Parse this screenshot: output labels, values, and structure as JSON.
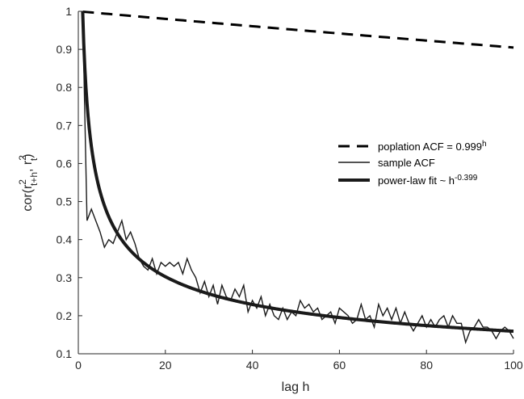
{
  "chart_data": {
    "type": "line",
    "xlabel": "lag h",
    "ylabel": {
      "base": "cor(r",
      "sup1": "2",
      "sub1": "t+h",
      "mid": ", r",
      "sup2": "2",
      "sub2": "t",
      "end": ")"
    },
    "xlim": [
      0,
      100
    ],
    "ylim": [
      0.1,
      1
    ],
    "xticks": [
      0,
      20,
      40,
      60,
      80,
      100
    ],
    "yticks": [
      0.1,
      0.2,
      0.3,
      0.4,
      0.5,
      0.6,
      0.7,
      0.8,
      0.9,
      1
    ],
    "ytick_labels": [
      "0.1",
      "0.2",
      "0.3",
      "0.4",
      "0.5",
      "0.6",
      "0.7",
      "0.8",
      "0.9",
      "1"
    ],
    "grid": false,
    "legend_position": "right",
    "series": [
      {
        "name": "poplation ACF = 0.999",
        "name_sup": "h",
        "style": "dashed",
        "color": "#000000",
        "base": 0.999,
        "x": [
          1,
          100
        ],
        "formula": "0.999^h"
      },
      {
        "name": "sample ACF",
        "style": "thin",
        "color": "#1a1a1a",
        "x": [
          1,
          2,
          3,
          4,
          5,
          6,
          7,
          8,
          9,
          10,
          11,
          12,
          13,
          14,
          15,
          16,
          17,
          18,
          19,
          20,
          21,
          22,
          23,
          24,
          25,
          26,
          27,
          28,
          29,
          30,
          31,
          32,
          33,
          34,
          35,
          36,
          37,
          38,
          39,
          40,
          41,
          42,
          43,
          44,
          45,
          46,
          47,
          48,
          49,
          50,
          51,
          52,
          53,
          54,
          55,
          56,
          57,
          58,
          59,
          60,
          61,
          62,
          63,
          64,
          65,
          66,
          67,
          68,
          69,
          70,
          71,
          72,
          73,
          74,
          75,
          76,
          77,
          78,
          79,
          80,
          81,
          82,
          83,
          84,
          85,
          86,
          87,
          88,
          89,
          90,
          91,
          92,
          93,
          94,
          95,
          96,
          97,
          98,
          99,
          100
        ],
        "y": [
          1.0,
          0.45,
          0.48,
          0.45,
          0.42,
          0.38,
          0.4,
          0.39,
          0.42,
          0.45,
          0.4,
          0.42,
          0.39,
          0.35,
          0.33,
          0.32,
          0.35,
          0.31,
          0.34,
          0.33,
          0.34,
          0.33,
          0.34,
          0.31,
          0.35,
          0.32,
          0.3,
          0.26,
          0.29,
          0.25,
          0.28,
          0.23,
          0.28,
          0.25,
          0.24,
          0.27,
          0.25,
          0.28,
          0.21,
          0.24,
          0.22,
          0.25,
          0.2,
          0.23,
          0.2,
          0.19,
          0.22,
          0.19,
          0.21,
          0.2,
          0.24,
          0.22,
          0.23,
          0.21,
          0.22,
          0.19,
          0.2,
          0.21,
          0.18,
          0.22,
          0.21,
          0.2,
          0.18,
          0.19,
          0.23,
          0.19,
          0.2,
          0.17,
          0.23,
          0.2,
          0.22,
          0.19,
          0.22,
          0.18,
          0.21,
          0.18,
          0.16,
          0.18,
          0.2,
          0.17,
          0.19,
          0.17,
          0.19,
          0.2,
          0.17,
          0.2,
          0.18,
          0.18,
          0.13,
          0.16,
          0.17,
          0.19,
          0.17,
          0.17,
          0.16,
          0.14,
          0.16,
          0.17,
          0.16,
          0.14
        ]
      },
      {
        "name": "power-law fit ~ h",
        "name_sup": "-0.399",
        "style": "thick",
        "color": "#1a1a1a",
        "exponent": -0.399,
        "formula": "h^-0.399",
        "x": [
          1,
          100
        ]
      }
    ]
  }
}
